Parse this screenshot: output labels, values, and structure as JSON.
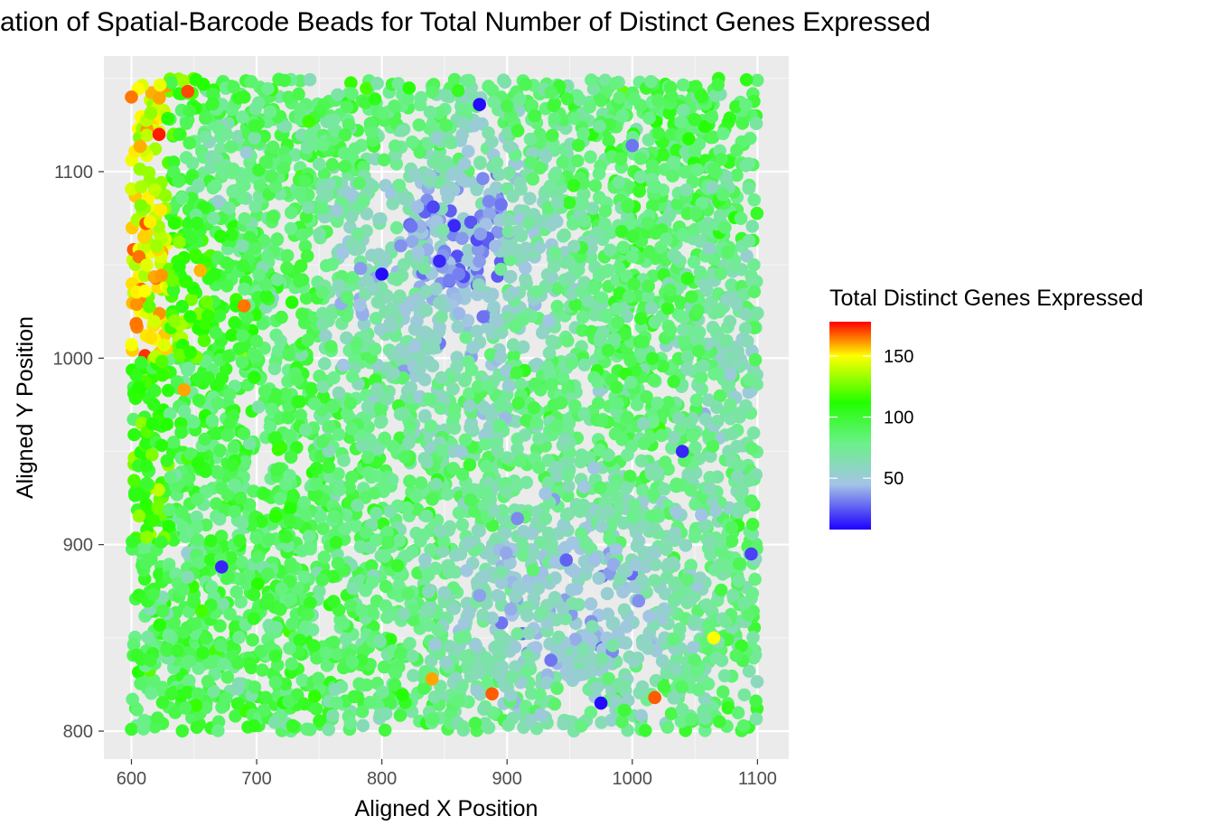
{
  "chart_data": {
    "type": "scatter",
    "title": "ation of Spatial-Barcode Beads for Total Number of Distinct Genes Expressed",
    "xlabel": "Aligned X Position",
    "ylabel": "Aligned Y Position",
    "xlim": [
      578,
      1125
    ],
    "ylim": [
      785,
      1162
    ],
    "x_ticks": [
      "600",
      "700",
      "800",
      "900",
      "1000",
      "1100"
    ],
    "y_ticks": [
      "800",
      "900",
      "1000",
      "1100"
    ],
    "grid": true,
    "legend": {
      "title": "Total Distinct Genes Expressed",
      "position": "right",
      "range": [
        8,
        178
      ],
      "ticks": [
        "50",
        "100",
        "150"
      ],
      "colors": [
        "#1e00ff",
        "#a4c4e6",
        "#6cf08c",
        "#22ff00",
        "#ffff00",
        "#ff0000"
      ],
      "color_stops": [
        8,
        45,
        78,
        112,
        150,
        178
      ]
    },
    "points_note": "dense field of beads over x 600-1100, y 800-1150",
    "points": [
      {
        "x": 600,
        "y": 1140,
        "v": 165
      },
      {
        "x": 622,
        "y": 1120,
        "v": 175
      },
      {
        "x": 645,
        "y": 1143,
        "v": 170
      },
      {
        "x": 690,
        "y": 1028,
        "v": 165
      },
      {
        "x": 642,
        "y": 983,
        "v": 160
      },
      {
        "x": 800,
        "y": 1045,
        "v": 10
      },
      {
        "x": 846,
        "y": 1052,
        "v": 15
      },
      {
        "x": 878,
        "y": 1136,
        "v": 10
      },
      {
        "x": 1040,
        "y": 950,
        "v": 15
      },
      {
        "x": 975,
        "y": 815,
        "v": 10
      },
      {
        "x": 840,
        "y": 828,
        "v": 160
      },
      {
        "x": 888,
        "y": 820,
        "v": 168
      },
      {
        "x": 1018,
        "y": 818,
        "v": 168
      },
      {
        "x": 672,
        "y": 888,
        "v": 15
      },
      {
        "x": 1095,
        "y": 895,
        "v": 20
      },
      {
        "x": 1000,
        "y": 1114,
        "v": 30
      },
      {
        "x": 1065,
        "y": 850,
        "v": 150
      },
      {
        "x": 610,
        "y": 1065,
        "v": 155
      },
      {
        "x": 655,
        "y": 1047,
        "v": 158
      },
      {
        "x": 935,
        "y": 838,
        "v": 30
      }
    ],
    "seed": 7
  }
}
